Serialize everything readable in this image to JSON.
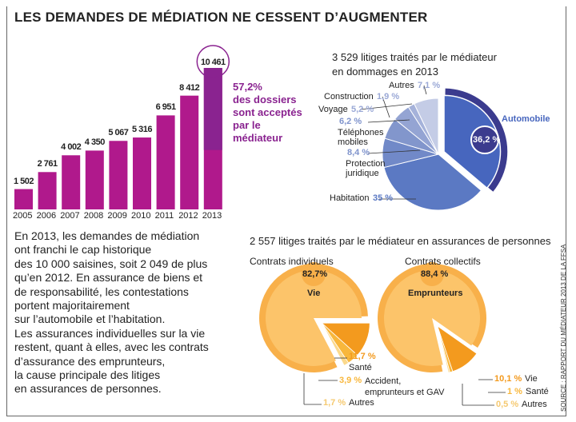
{
  "title": "LES DEMANDES DE MÉDIATION NE CESSENT D’AUGMENTER",
  "paragraph": "En 2013, les demandes de médiation\nont franchi le cap historique\ndes 10 000 saisines, soit 2 049 de plus\nqu’en 2012. En assurance de biens et\nde responsabilité, les contestations\nportent majoritairement\nsur l’automobile et l’habitation.\nLes assurances individuelles sur la vie\nrestent, quant à elles, avec les contrats\nd’assurance des emprunteurs,\nla cause principale des litiges\nen assurances de personnes.",
  "source": "SOURCE : RAPPORT DU MÉDIATEUR 2013 DE LA FFSA",
  "colors": {
    "bar": "#b0198c",
    "bar_accepted": "#8a2390",
    "accent_text": "#8a2390",
    "auto_ring": "#3b3b8e",
    "orange": "#f5a623",
    "light_orange": "#fbc96b"
  },
  "chart_data": [
    {
      "type": "bar",
      "categories": [
        "2005",
        "2006",
        "2007",
        "2008",
        "2009",
        "2010",
        "2011",
        "2012",
        "2013"
      ],
      "values": [
        1502,
        2761,
        4002,
        4350,
        5067,
        5316,
        6951,
        8412,
        10461
      ],
      "data_labels": [
        "1 502",
        "2 761",
        "4 002",
        "4 350",
        "5 067",
        "5 316",
        "6 951",
        "8 412",
        "10 461"
      ],
      "annotation": {
        "value": "57,2%",
        "text": "des dossiers\nsont acceptés\npar le\nmédiateur"
      }
    },
    {
      "type": "pie",
      "title": "3 529 litiges traités par le médiateur\nen dommages en 2013",
      "slices": [
        {
          "label": "Automobile",
          "value": 36.2,
          "value_label": "36,2 %",
          "color": "#4766be"
        },
        {
          "label": "Habitation",
          "value": 35,
          "value_label": "35 %",
          "color": "#5b79c3"
        },
        {
          "label": "Protection\njuridique",
          "value": 8.4,
          "value_label": "8,4 %",
          "color": "#7189c8"
        },
        {
          "label": "Téléphones\nmobiles",
          "value": 6.2,
          "value_label": "6,2 %",
          "color": "#8296cc"
        },
        {
          "label": "Voyage",
          "value": 5.2,
          "value_label": "5,2 %",
          "color": "#94a4d3"
        },
        {
          "label": "Construction",
          "value": 1.9,
          "value_label": "1,9 %",
          "color": "#a5b2da"
        },
        {
          "label": "Autres",
          "value": 7.1,
          "value_label": "7,1 %",
          "color": "#c4cce6"
        }
      ]
    },
    {
      "type": "pie",
      "group_title": "2 557 litiges traités par le médiateur en assurances de personnes",
      "title": "Contrats individuels",
      "slices": [
        {
          "label": "Vie",
          "value": 82.7,
          "value_label": "82,7%",
          "color": "#fcc46a"
        },
        {
          "label": "Santé",
          "value": 11.7,
          "value_label": "11,7 %",
          "color": "#f39a1e"
        },
        {
          "label": "Accident,\nemprunteurs et GAV",
          "value": 3.9,
          "value_label": "3,9 %",
          "color": "#f8b73c"
        },
        {
          "label": "Autres",
          "value": 1.7,
          "value_label": "1,7 %",
          "color": "#fbd98c"
        }
      ]
    },
    {
      "type": "pie",
      "title": "Contrats collectifs",
      "slices": [
        {
          "label": "Emprunteurs",
          "value": 88.4,
          "value_label": "88,4 %",
          "color": "#fcc46a"
        },
        {
          "label": "Vie",
          "value": 10.1,
          "value_label": "10,1 %",
          "color": "#f39a1e"
        },
        {
          "label": "Santé",
          "value": 1,
          "value_label": "1 %",
          "color": "#f8b73c"
        },
        {
          "label": "Autres",
          "value": 0.5,
          "value_label": "0,5 %",
          "color": "#fbd98c"
        }
      ]
    }
  ]
}
